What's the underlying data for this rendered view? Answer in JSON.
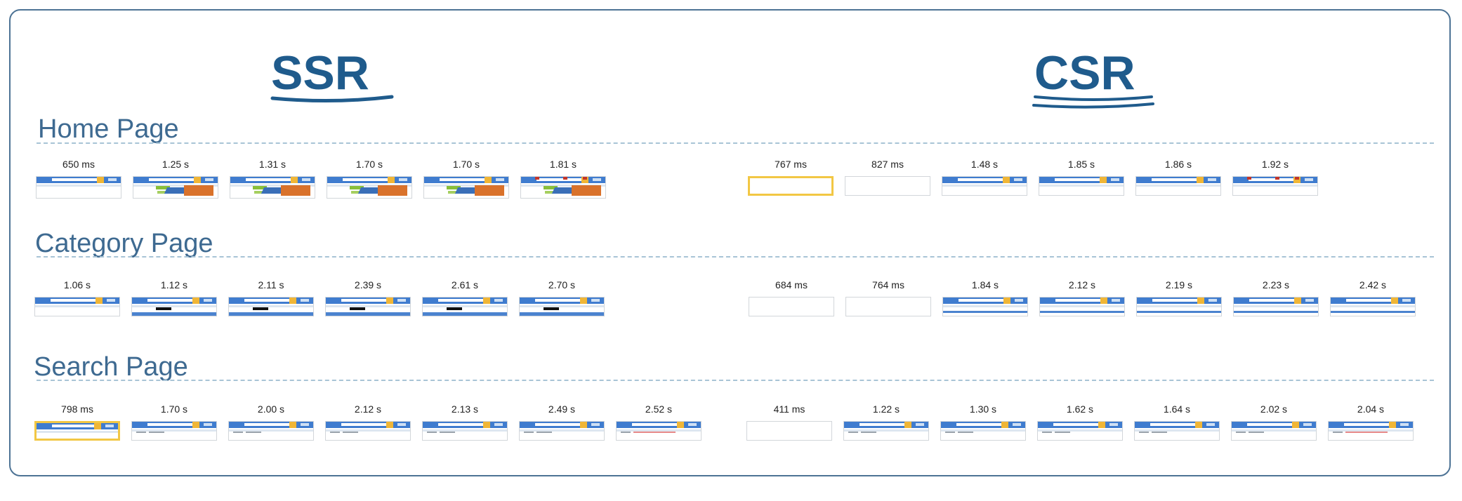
{
  "columns": {
    "ssr_title": "SSR",
    "csr_title": "CSR"
  },
  "sections": [
    {
      "title": "Home Page",
      "ssr": [
        "650 ms",
        "1.25 s",
        "1.31 s",
        "1.70 s",
        "1.70 s",
        "1.81 s"
      ],
      "csr": [
        "767 ms",
        "827 ms",
        "1.48 s",
        "1.85 s",
        "1.86 s",
        "1.92 s"
      ]
    },
    {
      "title": "Category Page",
      "ssr": [
        "1.06 s",
        "1.12 s",
        "2.11 s",
        "2.39 s",
        "2.61 s",
        "2.70 s"
      ],
      "csr": [
        "684 ms",
        "764 ms",
        "1.84 s",
        "2.12 s",
        "2.19 s",
        "2.23 s",
        "2.42 s"
      ]
    },
    {
      "title": "Search Page",
      "ssr": [
        "798 ms",
        "1.70 s",
        "2.00 s",
        "2.12 s",
        "2.13 s",
        "2.49 s",
        "2.52 s"
      ],
      "csr": [
        "411 ms",
        "1.22 s",
        "1.30 s",
        "1.62 s",
        "1.64 s",
        "2.02 s",
        "2.04 s"
      ]
    }
  ],
  "colors": {
    "accent": "#1f5b8c",
    "section": "#3e6a91",
    "highlight": "#f2c744",
    "page_bar": "#3f7ccf"
  }
}
